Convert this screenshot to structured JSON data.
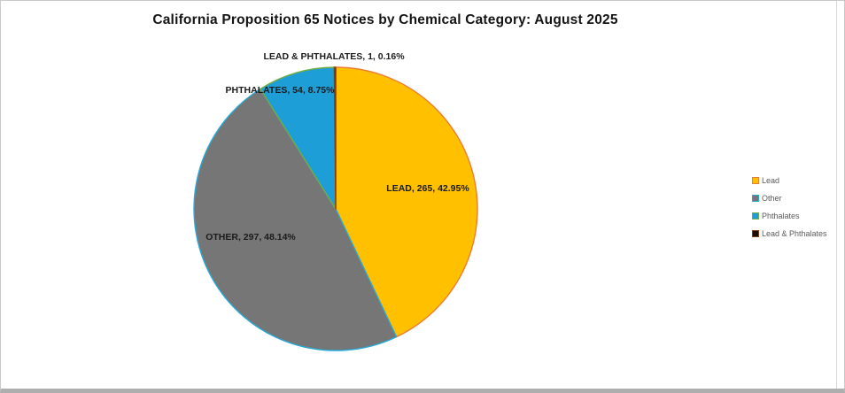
{
  "chart_data": {
    "type": "pie",
    "title": "California Proposition 65 Notices by Chemical Category: August 2025",
    "total": 617,
    "start_angle_deg": 0,
    "direction": "clockwise",
    "legend_position": "right",
    "slices": [
      {
        "name": "Lead",
        "value": 265,
        "pct": "42.95%",
        "label": "LEAD, 265, 42.95%",
        "fill": "#FFC000",
        "stroke": "#ED7D31"
      },
      {
        "name": "Other",
        "value": 297,
        "pct": "48.14%",
        "label": "OTHER, 297, 48.14%",
        "fill": "#767676",
        "stroke": "#29A8D6"
      },
      {
        "name": "Phthalates",
        "value": 54,
        "pct": "8.75%",
        "label": "PHTHALATES, 54, 8.75%",
        "fill": "#1E9ED6",
        "stroke": "#70AD47"
      },
      {
        "name": "Lead & Phthalates",
        "value": 1,
        "pct": "0.16%",
        "label": "LEAD & PHTHALATES, 1, 0.16%",
        "fill": "#1C0A00",
        "stroke": "#8B3A0E"
      }
    ]
  }
}
